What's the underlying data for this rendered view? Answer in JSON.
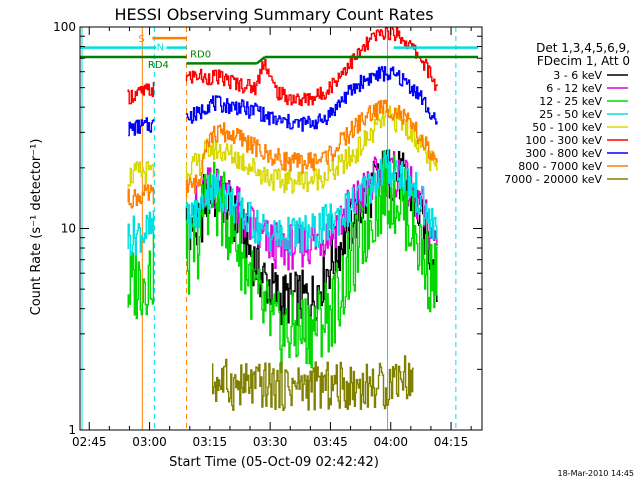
{
  "chart_data": {
    "type": "line",
    "title": "HESSI Observing Summary Count Rates",
    "xlabel": "Start Time (05-Oct-09 02:42:42)",
    "ylabel": "Count Rate (s⁻¹ detector⁻¹)",
    "yscale": "log",
    "ylim": [
      1,
      100
    ],
    "xlim_minutes_after_start": [
      0,
      100
    ],
    "x_tick_labels": [
      "02:45",
      "03:00",
      "03:15",
      "03:30",
      "03:45",
      "04:00",
      "04:15"
    ],
    "x_tick_minutes": [
      2.3,
      17.3,
      32.3,
      47.3,
      62.3,
      77.3,
      92.3
    ],
    "y_tick_labels": [
      "1",
      "10",
      "100"
    ],
    "y_tick_values": [
      1,
      10,
      100
    ],
    "legend": {
      "position": "right",
      "header_line1": "Det 1,3,4,5,6,9,",
      "header_line2": "FDecim 1, Att 0"
    },
    "series": [
      {
        "name": "3 - 6 keV",
        "color": "#000000",
        "noise": 0.14,
        "points": [
          [
            25,
            11
          ],
          [
            27,
            11
          ],
          [
            30,
            9.5
          ],
          [
            31,
            14
          ],
          [
            33,
            15
          ],
          [
            36,
            14
          ],
          [
            40,
            10
          ],
          [
            45,
            6
          ],
          [
            50,
            4.5
          ],
          [
            58,
            4.5
          ],
          [
            63,
            7
          ],
          [
            68,
            11
          ],
          [
            73,
            16
          ],
          [
            76,
            19
          ],
          [
            80,
            18
          ],
          [
            84,
            13
          ],
          [
            87,
            8
          ],
          [
            89,
            6
          ]
        ]
      },
      {
        "name": "6 - 12 keV",
        "color": "#e000e0",
        "noise": 0.12,
        "points": [
          [
            28,
            15.5
          ],
          [
            30,
            10.5
          ],
          [
            31,
            15
          ],
          [
            33,
            16
          ],
          [
            36,
            15.5
          ],
          [
            40,
            12
          ],
          [
            45,
            9
          ],
          [
            50,
            8
          ],
          [
            58,
            8.5
          ],
          [
            63,
            10
          ],
          [
            68,
            13
          ],
          [
            73,
            17
          ],
          [
            76,
            19
          ],
          [
            80,
            18
          ],
          [
            84,
            14
          ],
          [
            87,
            10
          ],
          [
            89,
            8.5
          ]
        ]
      },
      {
        "name": "12 - 25 keV",
        "color": "#00d800",
        "noise": 0.2,
        "points": [
          [
            12,
            5
          ],
          [
            15,
            5.5
          ],
          [
            18,
            6
          ],
          [
            20,
            7
          ],
          [
            25,
            6.5
          ],
          [
            27,
            7
          ],
          [
            30,
            9
          ],
          [
            31,
            14
          ],
          [
            33,
            15
          ],
          [
            36,
            12
          ],
          [
            40,
            8
          ],
          [
            45,
            4
          ],
          [
            50,
            3
          ],
          [
            58,
            3.2
          ],
          [
            63,
            4
          ],
          [
            68,
            7
          ],
          [
            73,
            12
          ],
          [
            76,
            16
          ],
          [
            80,
            14
          ],
          [
            84,
            9
          ],
          [
            87,
            6
          ],
          [
            89,
            5.5
          ]
        ]
      },
      {
        "name": "25 - 50 keV",
        "color": "#00e0e0",
        "noise": 0.1,
        "points": [
          [
            12,
            9
          ],
          [
            15,
            9.5
          ],
          [
            20,
            10
          ],
          [
            25,
            10.5
          ],
          [
            27,
            11
          ],
          [
            30,
            12
          ],
          [
            31,
            15
          ],
          [
            33,
            16
          ],
          [
            36,
            15
          ],
          [
            40,
            12
          ],
          [
            45,
            10
          ],
          [
            50,
            9
          ],
          [
            58,
            9.5
          ],
          [
            63,
            11
          ],
          [
            68,
            13
          ],
          [
            73,
            17
          ],
          [
            76,
            20
          ],
          [
            80,
            19
          ],
          [
            84,
            15
          ],
          [
            87,
            11
          ],
          [
            89,
            9.5
          ]
        ]
      },
      {
        "name": "50 - 100 keV",
        "color": "#d8d800",
        "noise": 0.06,
        "points": [
          [
            12,
            18
          ],
          [
            15,
            19
          ],
          [
            20,
            19
          ],
          [
            25,
            19.5
          ],
          [
            27,
            20
          ],
          [
            30,
            21
          ],
          [
            31,
            24
          ],
          [
            33,
            25
          ],
          [
            36,
            24
          ],
          [
            40,
            22
          ],
          [
            45,
            19
          ],
          [
            50,
            17
          ],
          [
            58,
            17.5
          ],
          [
            63,
            19
          ],
          [
            68,
            23
          ],
          [
            73,
            30
          ],
          [
            76,
            36
          ],
          [
            80,
            34
          ],
          [
            84,
            28
          ],
          [
            87,
            22
          ],
          [
            89,
            20
          ]
        ]
      },
      {
        "name": "100 - 300 keV",
        "color": "#ff0000",
        "noise": 0.04,
        "points": [
          [
            12,
            45
          ],
          [
            15,
            47
          ],
          [
            20,
            50
          ],
          [
            25,
            53
          ],
          [
            27,
            56
          ],
          [
            30,
            58
          ],
          [
            31,
            55
          ],
          [
            33,
            57
          ],
          [
            36,
            55
          ],
          [
            40,
            52
          ],
          [
            44,
            50
          ],
          [
            46,
            70
          ],
          [
            48,
            52
          ],
          [
            50,
            46
          ],
          [
            55,
            43
          ],
          [
            60,
            46
          ],
          [
            63,
            52
          ],
          [
            66,
            62
          ],
          [
            70,
            75
          ],
          [
            73,
            88
          ],
          [
            76,
            95
          ],
          [
            79,
            93
          ],
          [
            82,
            82
          ],
          [
            85,
            70
          ],
          [
            87,
            60
          ],
          [
            89,
            50
          ]
        ]
      },
      {
        "name": "300 - 800 keV",
        "color": "#0000ff",
        "noise": 0.04,
        "points": [
          [
            12,
            31
          ],
          [
            15,
            32
          ],
          [
            20,
            33
          ],
          [
            25,
            34.5
          ],
          [
            27,
            36
          ],
          [
            30,
            37
          ],
          [
            31,
            40
          ],
          [
            33,
            42
          ],
          [
            36,
            41
          ],
          [
            40,
            40
          ],
          [
            43,
            38
          ],
          [
            44,
            40
          ],
          [
            46,
            36
          ],
          [
            50,
            34
          ],
          [
            55,
            33
          ],
          [
            60,
            34
          ],
          [
            63,
            38
          ],
          [
            66,
            45
          ],
          [
            70,
            53
          ],
          [
            73,
            57
          ],
          [
            76,
            59
          ],
          [
            79,
            57
          ],
          [
            82,
            52
          ],
          [
            85,
            45
          ],
          [
            87,
            38
          ],
          [
            89,
            32
          ]
        ]
      },
      {
        "name": "800 - 7000 keV",
        "color": "#ff8000",
        "noise": 0.05,
        "points": [
          [
            12,
            14
          ],
          [
            15,
            14.5
          ],
          [
            20,
            15
          ],
          [
            25,
            15.5
          ],
          [
            27,
            16
          ],
          [
            30,
            17
          ],
          [
            31,
            26
          ],
          [
            33,
            29
          ],
          [
            36,
            30
          ],
          [
            40,
            28
          ],
          [
            43,
            26
          ],
          [
            45,
            24
          ],
          [
            50,
            22
          ],
          [
            55,
            21
          ],
          [
            60,
            22
          ],
          [
            63,
            24
          ],
          [
            66,
            28
          ],
          [
            70,
            34
          ],
          [
            73,
            38
          ],
          [
            76,
            40
          ],
          [
            79,
            38
          ],
          [
            82,
            33
          ],
          [
            85,
            28
          ],
          [
            87,
            24
          ],
          [
            89,
            20
          ]
        ]
      },
      {
        "name": "7000 - 20000 keV",
        "color": "#808000",
        "noise": 0.12,
        "points": [
          [
            33,
            1.7
          ],
          [
            35,
            1.75
          ],
          [
            37,
            1.7
          ],
          [
            38,
            1.65
          ],
          [
            76.5,
            1.65
          ],
          [
            78,
            1.8
          ],
          [
            80,
            1.9
          ],
          [
            82,
            1.8
          ],
          [
            83,
            1.65
          ]
        ]
      }
    ],
    "annotations": {
      "S": {
        "label": "S",
        "color": "#ff8000",
        "x_start": 18,
        "x_end": 26.5,
        "y": 88
      },
      "N": {
        "label": "N",
        "color": "#00e0e0",
        "segments": [
          [
            0,
            19
          ],
          [
            21.5,
            26.5
          ],
          [
            78,
            99
          ]
        ],
        "y": 79
      },
      "RD4": {
        "label": "RD4",
        "color": "#008000",
        "x_start": 0,
        "x_end": 26.5,
        "y": 71
      },
      "RD0": {
        "label": "RD0",
        "color": "#008000",
        "x_start": 26.5,
        "x_end": 99,
        "y": 66
      }
    },
    "orange_solid_x": [
      15.5
    ],
    "orange_dashed_x": [
      26.5
    ],
    "cyan_solid_x": [
      0.5,
      76.5
    ],
    "cyan_dashed_x": [
      18.5,
      93.5
    ],
    "data_gap_minutes": [
      18.5,
      26.5
    ]
  },
  "footer": {
    "timestamp": "18-Mar-2010 14:45"
  }
}
